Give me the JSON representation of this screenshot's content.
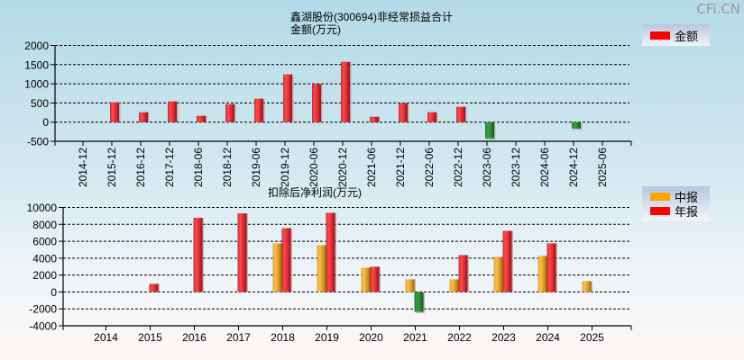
{
  "watermark": "CFi.CN",
  "colors": {
    "annual": "#ff0000",
    "interim": "#ffa500",
    "negative": "#2e8b2e",
    "grid": "#000000"
  },
  "chart_data": [
    {
      "type": "bar",
      "title": "鑫湖股份(300694)非经常损益合计",
      "ylabel": "金额(万元)",
      "legend": [
        {
          "name": "金额",
          "color": "#ff0000"
        }
      ],
      "legend_position": "top-right",
      "ylim": [
        -500,
        2000
      ],
      "yticks": [
        2000,
        1500,
        1000,
        500,
        0,
        -500
      ],
      "grid": true,
      "categories": [
        "2014-12",
        "2015-12",
        "2016-12",
        "2017-12",
        "2018-06",
        "2018-12",
        "2019-06",
        "2019-12",
        "2020-06",
        "2020-12",
        "2021-06",
        "2021-12",
        "2022-06",
        "2022-12",
        "2023-06",
        "2023-12",
        "2024-06",
        "2024-12",
        "2025-06"
      ],
      "series": [
        {
          "name": "金额",
          "values": [
            null,
            516,
            258,
            540,
            164,
            470,
            610,
            1245,
            993,
            1572,
            141,
            493,
            258,
            400,
            -420,
            null,
            null,
            -165,
            null
          ]
        }
      ]
    },
    {
      "type": "bar",
      "title": "扣除后净利润(万元)",
      "legend": [
        {
          "name": "中报",
          "color": "#ffa500"
        },
        {
          "name": "年报",
          "color": "#ff0000"
        }
      ],
      "legend_position": "top-right",
      "ylim": [
        -4000,
        10000
      ],
      "yticks": [
        10000,
        8000,
        6000,
        4000,
        2000,
        0,
        -2000,
        -4000
      ],
      "grid": true,
      "categories": [
        "2014",
        "2015",
        "2016",
        "2017",
        "2018",
        "2019",
        "2020",
        "2021",
        "2022",
        "2023",
        "2024",
        "2025"
      ],
      "series": [
        {
          "name": "中报",
          "values": [
            null,
            null,
            null,
            null,
            5740,
            5530,
            2870,
            1490,
            1490,
            4150,
            4260,
            1280
          ]
        },
        {
          "name": "年报",
          "values": [
            null,
            960,
            8770,
            9300,
            7550,
            9360,
            2980,
            -2340,
            4360,
            7230,
            5750,
            null
          ]
        }
      ]
    }
  ]
}
